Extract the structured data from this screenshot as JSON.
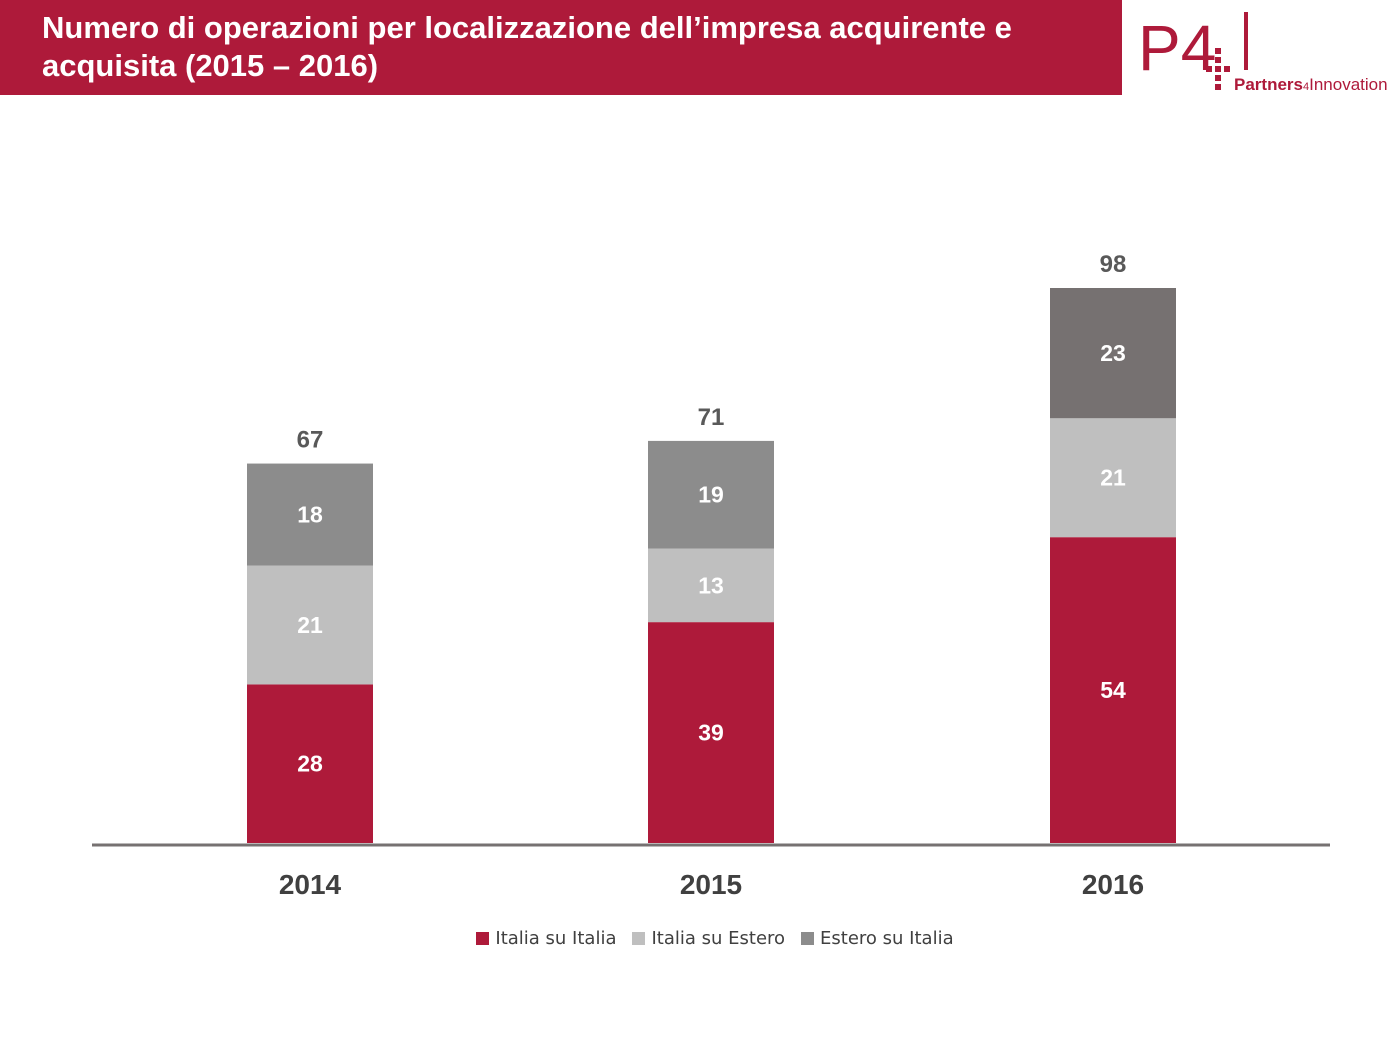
{
  "header": {
    "title": "Numero di operazioni per localizzazione dell’impresa acquirente e acquisita (2015 – 2016)"
  },
  "logo": {
    "mark": "P4",
    "name_bold": "Partners",
    "name_sub": "4",
    "name_rest": "Innovation"
  },
  "colors": {
    "brand": "#ae1a3a",
    "italia_su_italia": "#ae1a3a",
    "italia_su_estero": "#bfbfbf",
    "estero_su_italia_2014_2015": "#8c8c8c",
    "estero_su_italia_2016": "#767171"
  },
  "chart_data": {
    "type": "bar",
    "stacked": true,
    "title": "Numero di operazioni per localizzazione dell’impresa acquirente e acquisita (2015 – 2016)",
    "categories": [
      "2014",
      "2015",
      "2016"
    ],
    "series": [
      {
        "name": "Italia su Italia",
        "values": [
          28,
          39,
          54
        ],
        "color": "#ae1a3a"
      },
      {
        "name": "Italia su Estero",
        "values": [
          21,
          13,
          21
        ],
        "color": "#bfbfbf"
      },
      {
        "name": "Estero su Italia",
        "values": [
          18,
          19,
          23
        ],
        "color": "#8c8c8c"
      }
    ],
    "totals": [
      67,
      71,
      98
    ],
    "ylim": [
      0,
      98
    ],
    "grid": false,
    "legend_position": "bottom"
  }
}
